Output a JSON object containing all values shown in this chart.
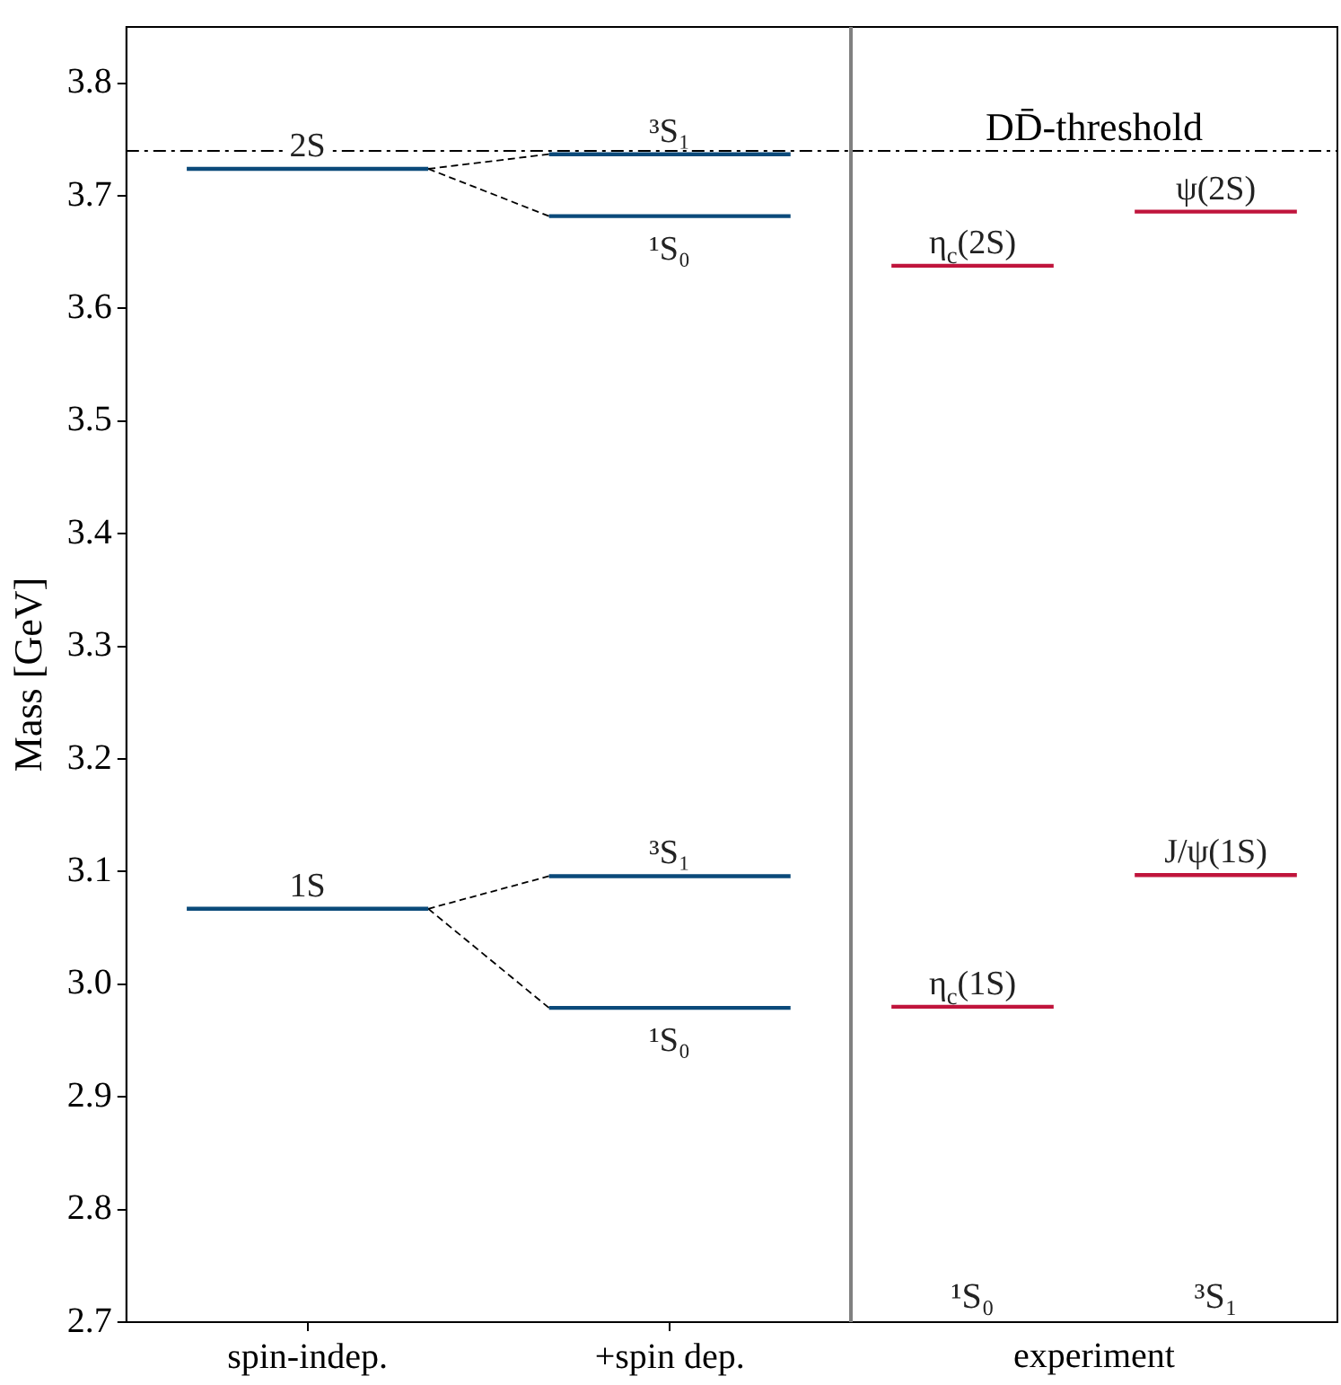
{
  "chart_data": [
    {
      "type": "line",
      "marker": "none",
      "ylabel": "Mass [GeV]",
      "legend": false,
      "grid": false,
      "categories": [
        null,
        "spin-indep.",
        null,
        null,
        "+spin dep.",
        null
      ],
      "ylim": [
        2.7,
        3.85
      ],
      "yticks": [
        2.7,
        2.8,
        2.9,
        {
          "value": 3,
          "label": "3.0"
        },
        3.1,
        3.2,
        3.3,
        3.4,
        3.5,
        3.6,
        3.7,
        3.8
      ],
      "series": [
        {
          "name": "2S",
          "color": "#0b4a7a",
          "values": [
            3.724,
            3.724,
            3.724,
            null,
            null,
            null
          ]
        },
        {
          "name": "1S",
          "color": "#0b4a7a",
          "values": [
            3.067,
            3.067,
            3.067,
            null,
            null,
            null
          ]
        },
        {
          "name": "³S₁",
          "color": "#0b4a7a",
          "values": [
            null,
            null,
            null,
            3.737,
            3.737,
            3.737
          ]
        },
        {
          "name": "¹S₀",
          "color": "#0b4a7a",
          "values": [
            null,
            null,
            null,
            3.682,
            3.682,
            3.682
          ]
        },
        {
          "name": "³S₁",
          "color": "#0b4a7a",
          "values": [
            null,
            null,
            null,
            3.096,
            3.096,
            3.096
          ]
        },
        {
          "name": "¹S₀",
          "color": "#0b4a7a",
          "values": [
            null,
            null,
            null,
            2.979,
            2.979,
            2.979
          ]
        },
        {
          "color": "#000000",
          "line_style": "dashed",
          "values": [
            null,
            null,
            3.724,
            3.737,
            null,
            null
          ]
        },
        {
          "color": "#000000",
          "line_style": "dashed",
          "values": [
            null,
            null,
            3.724,
            3.682,
            null,
            null
          ]
        },
        {
          "color": "#000000",
          "line_style": "dashed",
          "values": [
            null,
            null,
            3.067,
            3.096,
            null,
            null
          ]
        },
        {
          "color": "#000000",
          "line_style": "dashed",
          "values": [
            null,
            null,
            3.067,
            2.979,
            null,
            null
          ]
        }
      ],
      "ref_lines": [
        {
          "axis": "y",
          "value": 3.74,
          "color": "#000000",
          "line_style": "dashed"
        }
      ]
    },
    {
      "type": "line",
      "marker": "none",
      "xlabel": "experiment",
      "legend": false,
      "grid": false,
      "tick_labels": "x",
      "categories": [
        null,
        "¹S₀",
        null,
        null,
        "³S₁",
        null
      ],
      "ylim": [
        2.7,
        3.85
      ],
      "series": [
        {
          "name": "η$_{c}$(2S)",
          "color": "#c0143c",
          "values": [
            3.638,
            3.638,
            3.638,
            null,
            null,
            null
          ]
        },
        {
          "name": "ψ(2S)",
          "color": "#c0143c",
          "values": [
            null,
            null,
            null,
            3.686,
            3.686,
            3.686
          ]
        },
        {
          "name": "η$_{c}$(1S)",
          "color": "#c0143c",
          "values": [
            2.98,
            2.98,
            2.98,
            null,
            null,
            null
          ]
        },
        {
          "name": "J/ψ(1S)",
          "color": "#c0143c",
          "values": [
            null,
            null,
            null,
            3.097,
            3.097,
            3.097
          ]
        }
      ],
      "ref_lines": [
        {
          "axis": "y",
          "value": 3.74,
          "label": "DD̄-threshold",
          "color": "#000000",
          "line_style": "dashed"
        }
      ]
    }
  ]
}
